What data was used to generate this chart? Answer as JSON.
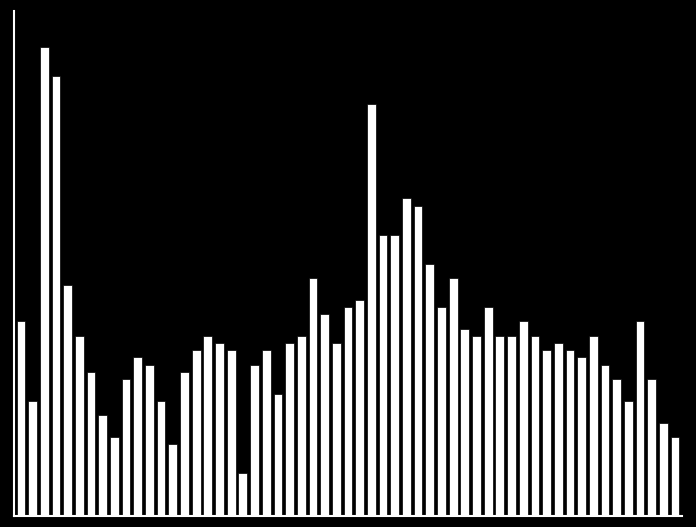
{
  "values": [
    13.5,
    8.0,
    32.5,
    30.5,
    16.0,
    12.5,
    10.0,
    7.0,
    5.5,
    9.5,
    11.0,
    10.5,
    8.0,
    5.0,
    10.0,
    11.5,
    12.5,
    12.0,
    11.5,
    3.0,
    10.5,
    11.5,
    8.5,
    12.0,
    12.5,
    16.5,
    14.0,
    12.0,
    14.5,
    15.0,
    28.5,
    19.5,
    19.5,
    22.0,
    21.5,
    17.5,
    14.5,
    16.5,
    13.0,
    12.5,
    14.5,
    12.5,
    12.5,
    13.5,
    12.5,
    11.5,
    12.0,
    11.5,
    11.0,
    12.5,
    10.5,
    9.5,
    8.0,
    13.5,
    9.5,
    6.5,
    5.5
  ],
  "ylim": [
    0,
    35.0
  ],
  "bar_color": "#ffffff",
  "bg_color": "#000000",
  "bar_width": 0.75,
  "spine_color": "#ffffff"
}
